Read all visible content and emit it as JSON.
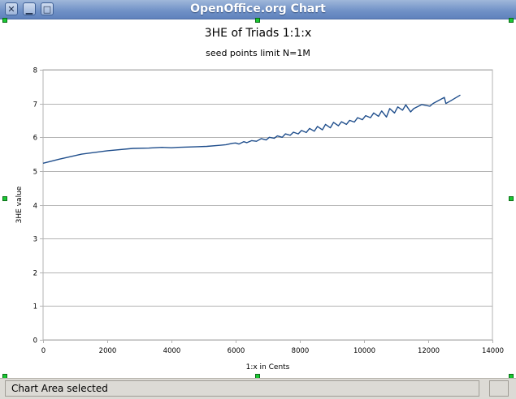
{
  "window": {
    "title": "OpenOffice.org Chart",
    "buttons": {
      "close": "close-icon",
      "minimize": "minimize-icon",
      "maximize": "maximize-icon"
    }
  },
  "status": {
    "text": "Chart Area selected"
  },
  "chart_data": {
    "type": "line",
    "title": "3HE of Triads 1:1:x",
    "subtitle": "seed points limit N=1M",
    "xlabel": "1:x in Cents",
    "ylabel": "3HE value",
    "xlim": [
      0,
      14000
    ],
    "ylim": [
      0,
      8
    ],
    "xticks": [
      "0",
      "2000",
      "4000",
      "6000",
      "8000",
      "10000",
      "12000",
      "14000"
    ],
    "yticks": [
      "0",
      "1",
      "2",
      "3",
      "4",
      "5",
      "6",
      "7",
      "8"
    ],
    "grid": "horizontal",
    "line_color": "#1f4e8c",
    "series": [
      {
        "x": [
          0,
          500,
          1200,
          2000,
          2800,
          3300,
          3700,
          4000,
          4200,
          4500,
          4800,
          5100,
          5500,
          5700,
          5900,
          6000,
          6100,
          6250,
          6350,
          6500,
          6650,
          6800,
          6950,
          7050,
          7200,
          7300,
          7450,
          7550,
          7700,
          7800,
          7950,
          8050,
          8200,
          8300,
          8450,
          8550,
          8700,
          8800,
          8950,
          9050,
          9200,
          9300,
          9450,
          9550,
          9700,
          9800,
          9950,
          10050,
          10200,
          10300,
          10450,
          10550,
          10700,
          10800,
          10950,
          11050,
          11200,
          11300,
          11450,
          11550,
          11800,
          12050,
          12150,
          12500,
          12550,
          12700,
          13000
        ],
        "y": [
          5.23,
          5.35,
          5.5,
          5.6,
          5.67,
          5.68,
          5.7,
          5.69,
          5.7,
          5.71,
          5.72,
          5.73,
          5.76,
          5.78,
          5.82,
          5.83,
          5.8,
          5.87,
          5.84,
          5.9,
          5.88,
          5.96,
          5.92,
          6.0,
          5.97,
          6.04,
          6.0,
          6.1,
          6.06,
          6.15,
          6.1,
          6.2,
          6.14,
          6.26,
          6.18,
          6.32,
          6.22,
          6.38,
          6.28,
          6.44,
          6.34,
          6.46,
          6.38,
          6.5,
          6.45,
          6.58,
          6.52,
          6.64,
          6.58,
          6.72,
          6.62,
          6.78,
          6.6,
          6.85,
          6.72,
          6.9,
          6.8,
          6.96,
          6.75,
          6.85,
          6.97,
          6.92,
          7.0,
          7.18,
          7.0,
          7.08,
          7.25
        ]
      }
    ]
  }
}
